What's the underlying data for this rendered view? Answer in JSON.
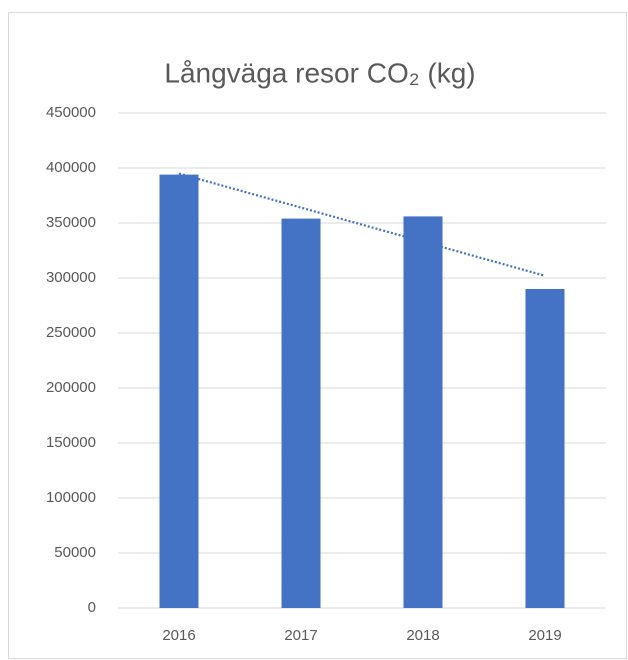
{
  "chart_data": {
    "type": "bar",
    "title": "Långväga resor CO₂ (kg)",
    "categories": [
      "2016",
      "2017",
      "2018",
      "2019"
    ],
    "values": [
      394000,
      354000,
      356000,
      290000
    ],
    "color": "#4472c4",
    "ylim": [
      0,
      450000
    ],
    "yticks": [
      0,
      50000,
      100000,
      150000,
      200000,
      250000,
      300000,
      350000,
      400000,
      450000
    ],
    "grid": true,
    "trendline": true
  }
}
